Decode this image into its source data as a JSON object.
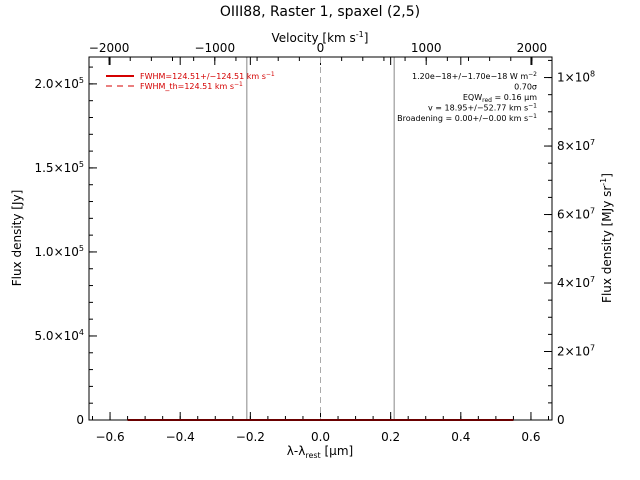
{
  "chart_data": {
    "type": "line",
    "title": "OIII88, Raster 1, spaxel (2,5)",
    "xlabel": "λ-λ",
    "xlabel_sub": "rest",
    "xlabel_unit": " [μm]",
    "top_xlabel": "Velocity [km s",
    "top_xlabel_sup": "-1",
    "top_xlabel_end": "]",
    "ylabel": "Flux density [Jy]",
    "ylabel_right": "Flux density [MJy sr",
    "ylabel_right_sup": "-1",
    "ylabel_right_end": "]",
    "xlim": [
      -0.66,
      0.66
    ],
    "ylim": [
      0,
      216000
    ],
    "vel_lim": [
      -2190,
      2190
    ],
    "right_ylim": [
      0,
      106000000
    ],
    "x_ticks": [
      {
        "v": -0.6,
        "label": "−0.6"
      },
      {
        "v": -0.4,
        "label": "−0.4"
      },
      {
        "v": -0.2,
        "label": "−0.2"
      },
      {
        "v": 0.0,
        "label": "0.0"
      },
      {
        "v": 0.2,
        "label": "0.2"
      },
      {
        "v": 0.4,
        "label": "0.4"
      },
      {
        "v": 0.6,
        "label": "0.6"
      }
    ],
    "vel_ticks": [
      {
        "v": -2000,
        "label": "−2000"
      },
      {
        "v": -1000,
        "label": "−1000"
      },
      {
        "v": 0,
        "label": "0"
      },
      {
        "v": 1000,
        "label": "1000"
      },
      {
        "v": 2000,
        "label": "2000"
      }
    ],
    "y_ticks": [
      {
        "v": 0,
        "label": "0",
        "sup": ""
      },
      {
        "v": 50000,
        "label": "5.0×10",
        "sup": "4"
      },
      {
        "v": 100000,
        "label": "1.0×10",
        "sup": "5"
      },
      {
        "v": 150000,
        "label": "1.5×10",
        "sup": "5"
      },
      {
        "v": 200000,
        "label": "2.0×10",
        "sup": "5"
      }
    ],
    "right_y_ticks": [
      {
        "v": 0,
        "label": "0",
        "sup": ""
      },
      {
        "v": 20000000,
        "label": "2×10",
        "sup": "7"
      },
      {
        "v": 40000000,
        "label": "4×10",
        "sup": "7"
      },
      {
        "v": 60000000,
        "label": "6×10",
        "sup": "7"
      },
      {
        "v": 80000000,
        "label": "8×10",
        "sup": "7"
      },
      {
        "v": 100000000,
        "label": "1×10",
        "sup": "8"
      }
    ],
    "series": [
      {
        "name": "FWHM=124.51+/-124.51 km s-1",
        "color": "#d40000",
        "style": "solid",
        "x": [
          -0.55,
          0.55
        ],
        "y": [
          0,
          0
        ]
      }
    ],
    "vertical_lines": [
      {
        "x": -0.21,
        "color": "#888888",
        "style": "solid"
      },
      {
        "x": 0.0,
        "color": "#aaaaaa",
        "style": "dashed"
      },
      {
        "x": 0.21,
        "color": "#888888",
        "style": "solid"
      }
    ],
    "legend": {
      "placement": "top-left",
      "entries": [
        {
          "text": "FWHM=124.51+/−124.51 km s",
          "sup": "−1",
          "color": "#d40000",
          "style": "solid"
        },
        {
          "text": "FWHM_th=124.51 km s",
          "sup": "−1",
          "color": "#d40000",
          "style": "dashed"
        }
      ]
    },
    "annotations": [
      {
        "text": "1.20e−18+/−1.70e−18 W m",
        "sup": "−2"
      },
      {
        "text": "0.70σ",
        "sup": ""
      },
      {
        "text": "EQW",
        "sub": "red",
        "text2": " = 0.16 μm"
      },
      {
        "text": "v = 18.95+/−52.77 km s",
        "sup": "−1"
      },
      {
        "text": "Broadening = 0.00+/−0.00 km s",
        "sup": "−1"
      }
    ]
  }
}
